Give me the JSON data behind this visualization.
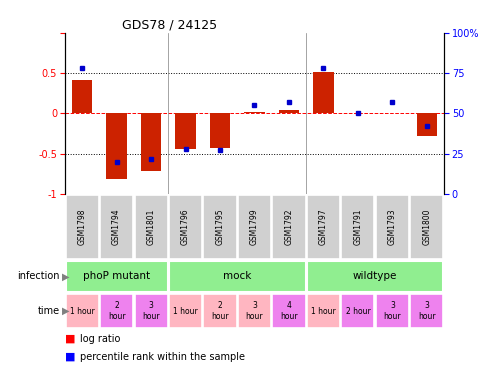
{
  "title": "GDS78 / 24125",
  "samples": [
    "GSM1798",
    "GSM1794",
    "GSM1801",
    "GSM1796",
    "GSM1795",
    "GSM1799",
    "GSM1792",
    "GSM1797",
    "GSM1791",
    "GSM1793",
    "GSM1800"
  ],
  "log_ratio": [
    0.42,
    -0.82,
    -0.72,
    -0.44,
    -0.43,
    0.02,
    0.04,
    0.52,
    0.0,
    0.01,
    -0.28
  ],
  "percentile": [
    78,
    20,
    22,
    28,
    27,
    55,
    57,
    78,
    50,
    57,
    42
  ],
  "infection_groups": [
    {
      "label": "phoP mutant",
      "start": 0,
      "end": 3
    },
    {
      "label": "mock",
      "start": 3,
      "end": 7
    },
    {
      "label": "wildtype",
      "start": 7,
      "end": 11
    }
  ],
  "inf_color": "#90ee90",
  "time_entries": [
    {
      "label": "1 hour",
      "color": "#ffb6c1"
    },
    {
      "label": "2\nhour",
      "color": "#ee82ee"
    },
    {
      "label": "3\nhour",
      "color": "#ee82ee"
    },
    {
      "label": "1 hour",
      "color": "#ffb6c1"
    },
    {
      "label": "2\nhour",
      "color": "#ffb6c1"
    },
    {
      "label": "3\nhour",
      "color": "#ffb6c1"
    },
    {
      "label": "4\nhour",
      "color": "#ee82ee"
    },
    {
      "label": "1 hour",
      "color": "#ffb6c1"
    },
    {
      "label": "2 hour",
      "color": "#ee82ee"
    },
    {
      "label": "3\nhour",
      "color": "#ee82ee"
    },
    {
      "label": "3\nhour",
      "color": "#ee82ee"
    }
  ],
  "sample_box_color": "#d0d0d0",
  "bar_color": "#cc2200",
  "dot_color": "#0000cc",
  "ylim": [
    -1,
    1
  ],
  "right_ylim": [
    0,
    100
  ],
  "yticks_left": [
    -1,
    -0.5,
    0,
    0.5,
    1
  ],
  "yticks_right": [
    0,
    25,
    50,
    75,
    100
  ],
  "left_tick_labels": [
    "-1",
    "-0.5",
    "0",
    "0.5",
    ""
  ],
  "right_tick_labels": [
    "0",
    "25",
    "50",
    "75",
    "100%"
  ]
}
